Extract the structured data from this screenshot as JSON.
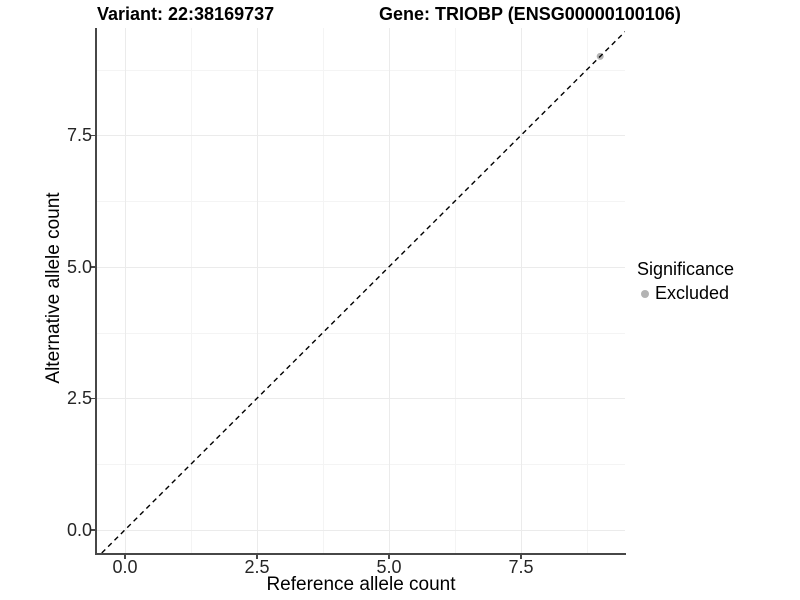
{
  "chart_data": {
    "type": "scatter",
    "titles": {
      "left": "Variant: 22:38169737",
      "right": "Gene: TRIOBP (ENSG00000100106)"
    },
    "xlabel": "Reference allele count",
    "ylabel": "Alternative allele count",
    "x_ticks": [
      0,
      2.5,
      5,
      7.5
    ],
    "y_ticks": [
      0,
      2.5,
      5,
      7.5
    ],
    "x_minor_ticks": [
      1.25,
      3.75,
      6.25,
      8.75
    ],
    "y_minor_ticks": [
      1.25,
      3.75,
      6.25,
      8.75
    ],
    "xlim": [
      -0.53,
      9.47
    ],
    "ylim": [
      -0.44,
      9.54
    ],
    "tick_format_decimals": 1,
    "grid": true,
    "reference_line": {
      "slope": 1,
      "intercept": 0,
      "style": "dashed",
      "color": "#000000"
    },
    "series": [
      {
        "name": "Excluded",
        "color": "#b3b3b3",
        "points": [
          {
            "x": 9,
            "y": 9
          }
        ]
      }
    ],
    "legend": {
      "title": "Significance",
      "position": "right",
      "items": [
        {
          "label": "Excluded",
          "color": "#b3b3b3"
        }
      ]
    },
    "colors": {
      "grid_major": "#ebebeb",
      "grid_minor": "#f4f4f4",
      "axis_line": "#474747",
      "tick_text": "#262626"
    }
  }
}
